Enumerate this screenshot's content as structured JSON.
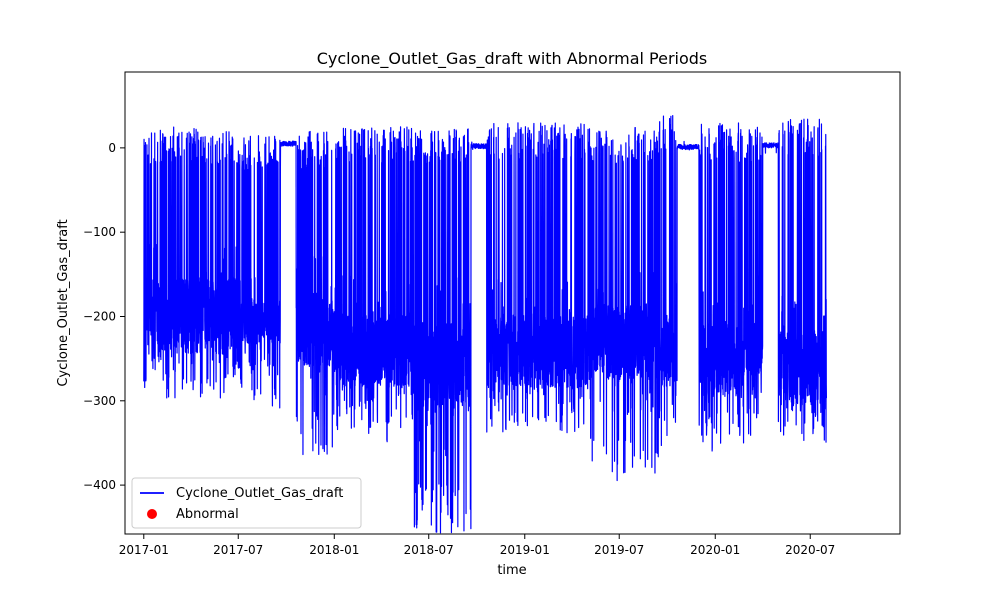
{
  "chart_data": {
    "type": "line",
    "title": "Cyclone_Outlet_Gas_draft with Abnormal Periods",
    "xlabel": "time",
    "ylabel": "Cyclone_Outlet_Gas_draft",
    "xlim": [
      "2016-11-26",
      "2020-12-20"
    ],
    "ylim": [
      -458,
      90
    ],
    "x_ticks": [
      "2017-01",
      "2017-07",
      "2018-01",
      "2018-07",
      "2019-01",
      "2019-07",
      "2020-01",
      "2020-07"
    ],
    "y_ticks": [
      0,
      -100,
      -200,
      -300,
      -400
    ],
    "legend_position": "lower-left",
    "grid": false,
    "series": [
      {
        "name": "Cyclone_Outlet_Gas_draft",
        "kind": "line",
        "color": "#0000ff",
        "x_start": "2017-01-01",
        "x_end": "2020-08-01",
        "values_summary": "high-frequency oscillation; main band about -300 to 20, extremes down to about -458 near 2018-08, flat near 0 during shutdown periods"
      },
      {
        "name": "Abnormal",
        "kind": "scatter",
        "color": "#ff0000",
        "points": []
      }
    ],
    "regimes": [
      {
        "start": "2017-01-01",
        "end": "2017-07-01",
        "base": -200,
        "low": -300,
        "high": 25,
        "amp": 1.0
      },
      {
        "start": "2017-07-01",
        "end": "2017-09-20",
        "base": -205,
        "low": -310,
        "high": 15,
        "amp": 0.6
      },
      {
        "start": "2017-09-20",
        "end": "2017-10-20",
        "base": 5,
        "low": -5,
        "high": 20,
        "amp": 0.05
      },
      {
        "start": "2017-10-20",
        "end": "2018-01-01",
        "base": -215,
        "low": -370,
        "high": 20,
        "amp": 1.0
      },
      {
        "start": "2018-01-01",
        "end": "2018-06-01",
        "base": -240,
        "low": -350,
        "high": 25,
        "amp": 1.0
      },
      {
        "start": "2018-06-01",
        "end": "2018-09-20",
        "base": -260,
        "low": -458,
        "high": 25,
        "amp": 1.2
      },
      {
        "start": "2018-09-20",
        "end": "2018-10-20",
        "base": 2,
        "low": -5,
        "high": 10,
        "amp": 0.05
      },
      {
        "start": "2018-10-20",
        "end": "2019-05-01",
        "base": -240,
        "low": -340,
        "high": 30,
        "amp": 1.0
      },
      {
        "start": "2019-05-01",
        "end": "2019-09-15",
        "base": -230,
        "low": -400,
        "high": 25,
        "amp": 1.0
      },
      {
        "start": "2019-09-15",
        "end": "2019-10-20",
        "base": -240,
        "low": -365,
        "high": 40,
        "amp": 1.0
      },
      {
        "start": "2019-10-20",
        "end": "2019-12-01",
        "base": 1,
        "low": -8,
        "high": 10,
        "amp": 0.05
      },
      {
        "start": "2019-12-01",
        "end": "2020-02-15",
        "base": -250,
        "low": -360,
        "high": 30,
        "amp": 1.0
      },
      {
        "start": "2020-02-15",
        "end": "2020-04-01",
        "base": -230,
        "low": -350,
        "high": 25,
        "amp": 0.9
      },
      {
        "start": "2020-04-01",
        "end": "2020-05-01",
        "base": 3,
        "low": -5,
        "high": 15,
        "amp": 0.05
      },
      {
        "start": "2020-05-01",
        "end": "2020-08-01",
        "base": -260,
        "low": -350,
        "high": 35,
        "amp": 1.0
      }
    ],
    "colors": {
      "line": "#0000ff",
      "abnormal": "#ff0000",
      "axes": "#000000",
      "background": "#ffffff"
    }
  }
}
